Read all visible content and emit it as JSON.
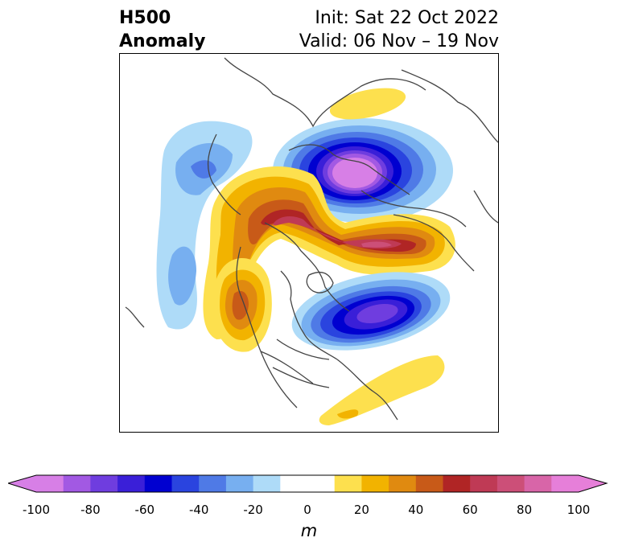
{
  "title": {
    "field_line1": "H500",
    "field_line2": "Anomaly",
    "init": "Init: Sat 22 Oct 2022",
    "valid": "Valid: 06 Nov – 19 Nov"
  },
  "colorbar": {
    "unit": "m",
    "tick_labels": [
      "-100",
      "-80",
      "-60",
      "-40",
      "-20",
      "0",
      "20",
      "40",
      "60",
      "80",
      "100"
    ],
    "bins": [
      {
        "range": [
          -100,
          -90
        ],
        "color": "#d77fe6"
      },
      {
        "range": [
          -90,
          -80
        ],
        "color": "#a259e3"
      },
      {
        "range": [
          -80,
          -70
        ],
        "color": "#6f3ddf"
      },
      {
        "range": [
          -70,
          -60
        ],
        "color": "#3a1fd8"
      },
      {
        "range": [
          -60,
          -50
        ],
        "color": "#0000d0"
      },
      {
        "range": [
          -50,
          -40
        ],
        "color": "#2a44df"
      },
      {
        "range": [
          -40,
          -30
        ],
        "color": "#4f7ae6"
      },
      {
        "range": [
          -30,
          -20
        ],
        "color": "#77aff0"
      },
      {
        "range": [
          -20,
          -10
        ],
        "color": "#aedbf8"
      },
      {
        "range": [
          -10,
          10
        ],
        "color": "#ffffff"
      },
      {
        "range": [
          10,
          20
        ],
        "color": "#fde04e"
      },
      {
        "range": [
          20,
          30
        ],
        "color": "#f2b300"
      },
      {
        "range": [
          30,
          40
        ],
        "color": "#e08a10"
      },
      {
        "range": [
          40,
          50
        ],
        "color": "#c85a18"
      },
      {
        "range": [
          50,
          60
        ],
        "color": "#b02525"
      },
      {
        "range": [
          60,
          70
        ],
        "color": "#bf3a55"
      },
      {
        "range": [
          70,
          80
        ],
        "color": "#cc4f78"
      },
      {
        "range": [
          80,
          90
        ],
        "color": "#d865a8"
      },
      {
        "range": [
          90,
          100
        ],
        "color": "#e67fd9"
      }
    ],
    "under_color": "#d77fe6",
    "over_color": "#e67fd9",
    "extend": "both"
  },
  "map": {
    "projection": "north-polar stereographic",
    "region": "North Pole / North America / North Atlantic / Eurasia",
    "anomaly_centers": [
      {
        "sign": "negative",
        "location": "Siberia / Kara Sea",
        "peak_m": -100
      },
      {
        "sign": "positive",
        "location": "Arctic Ocean / Greenland ridge",
        "peak_m": 80
      },
      {
        "sign": "negative",
        "location": "Hudson Bay / Eastern Canada",
        "peak_m": -80
      },
      {
        "sign": "positive",
        "location": "Pacific Northwest / Alaska coast",
        "peak_m": 50
      },
      {
        "sign": "negative",
        "location": "North Pacific / Bering",
        "peak_m": -40
      },
      {
        "sign": "positive",
        "location": "Western North Atlantic",
        "peak_m": 20
      },
      {
        "sign": "positive",
        "location": "Eastern Europe",
        "peak_m": 20
      }
    ]
  }
}
